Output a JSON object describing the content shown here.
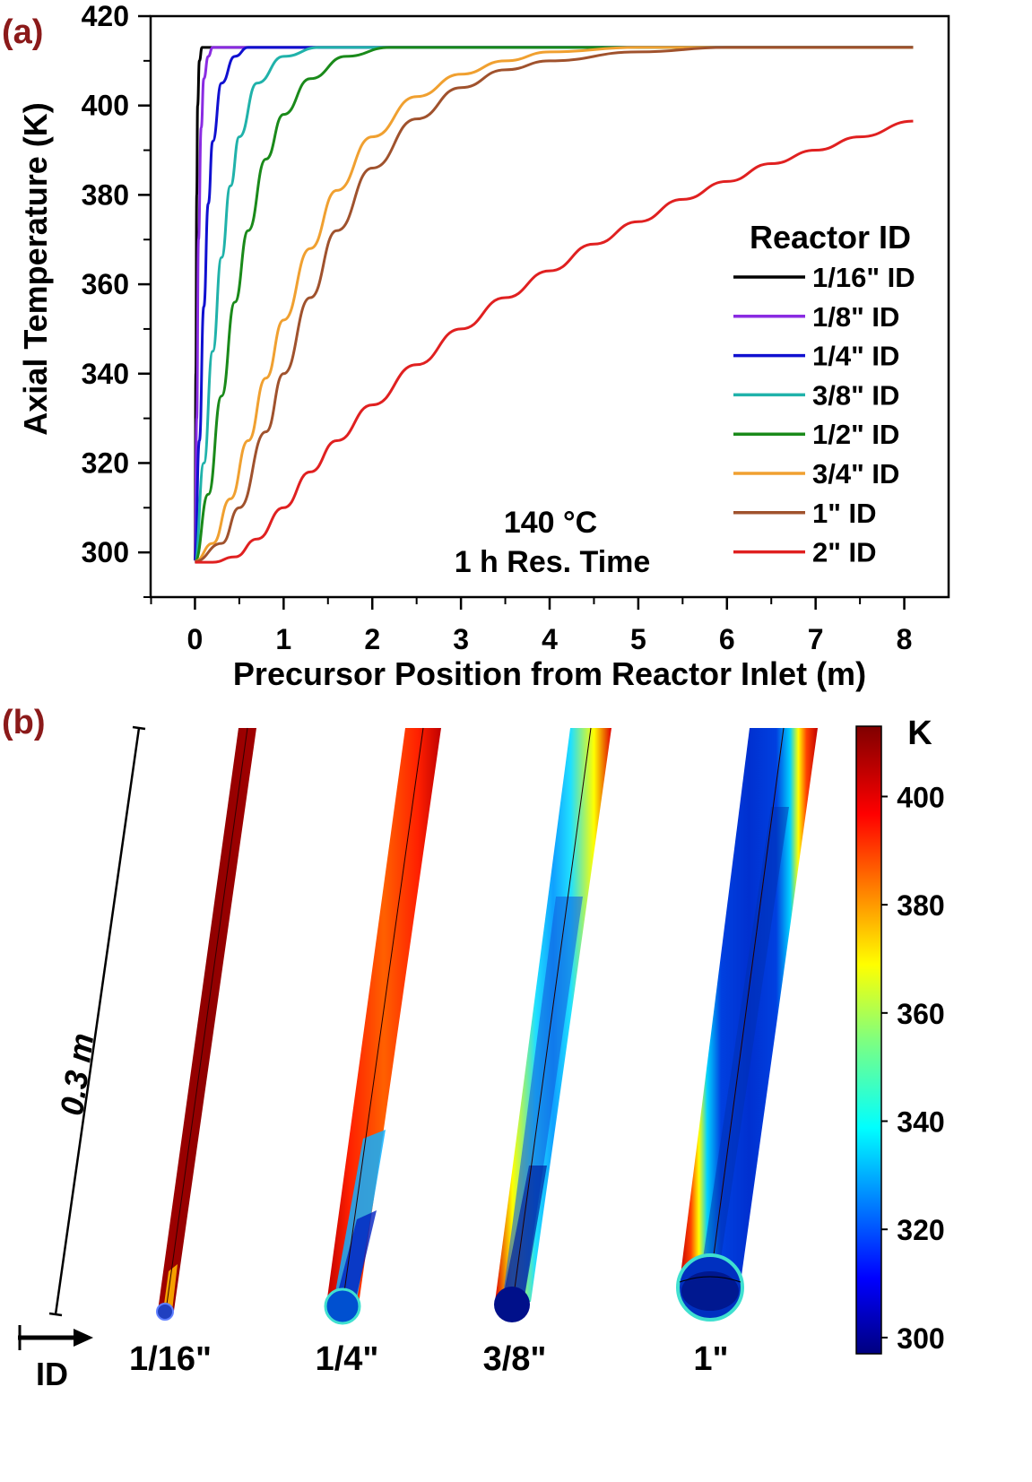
{
  "chart_data": [
    {
      "type": "line",
      "panel_label": "(a)",
      "xlabel": "Precursor Position from Reactor Inlet (m)",
      "ylabel": "Axial Temperature (K)",
      "xlim": [
        -0.5,
        8.5
      ],
      "ylim": [
        290,
        420
      ],
      "x_ticks": [
        0,
        1,
        2,
        3,
        4,
        5,
        6,
        7,
        8
      ],
      "y_ticks": [
        300,
        320,
        340,
        360,
        380,
        400,
        420
      ],
      "legend_title": "Reactor ID",
      "legend_position": "right",
      "annotation_line1": "140 °C",
      "annotation_line2": "1 h Res. Time",
      "colors": {
        "1/16\" ID": "#000000",
        "1/8\" ID": "#8a2be2",
        "1/4\" ID": "#1010d0",
        "3/8\" ID": "#20b2aa",
        "1/2\" ID": "#1a8a1a",
        "3/4\" ID": "#f0a030",
        "1\" ID": "#a0522d",
        "2\" ID": "#e02020"
      },
      "series": [
        {
          "name": "1/16\" ID",
          "x": [
            0,
            0.01,
            0.02,
            0.03,
            0.05,
            0.08,
            8.1
          ],
          "y": [
            298,
            340,
            380,
            400,
            410,
            413,
            413
          ]
        },
        {
          "name": "1/8\" ID",
          "x": [
            0,
            0.02,
            0.04,
            0.07,
            0.1,
            0.15,
            0.2,
            8.1
          ],
          "y": [
            298,
            330,
            370,
            395,
            406,
            411,
            413,
            413
          ]
        },
        {
          "name": "1/4\" ID",
          "x": [
            0,
            0.05,
            0.1,
            0.15,
            0.2,
            0.3,
            0.45,
            0.6,
            8.1
          ],
          "y": [
            298,
            325,
            355,
            378,
            392,
            405,
            411,
            413,
            413
          ]
        },
        {
          "name": "3/8\" ID",
          "x": [
            0,
            0.1,
            0.2,
            0.3,
            0.4,
            0.5,
            0.7,
            1.0,
            1.4,
            8.1
          ],
          "y": [
            298,
            320,
            345,
            366,
            382,
            393,
            405,
            411,
            413,
            413
          ]
        },
        {
          "name": "1/2\" ID",
          "x": [
            0,
            0.15,
            0.3,
            0.45,
            0.6,
            0.8,
            1.0,
            1.3,
            1.7,
            2.2,
            8.1
          ],
          "y": [
            298,
            313,
            335,
            356,
            372,
            388,
            398,
            406,
            411,
            413,
            413
          ]
        },
        {
          "name": "3/4\" ID",
          "x": [
            0,
            0.2,
            0.4,
            0.6,
            0.8,
            1.0,
            1.3,
            1.6,
            2.0,
            2.5,
            3.0,
            3.5,
            4.0,
            5.0,
            8.1
          ],
          "y": [
            298,
            302,
            312,
            325,
            339,
            352,
            368,
            381,
            393,
            402,
            407,
            410,
            412,
            413,
            413
          ]
        },
        {
          "name": "1\" ID",
          "x": [
            0,
            0.3,
            0.5,
            0.8,
            1.0,
            1.3,
            1.6,
            2.0,
            2.5,
            3.0,
            3.5,
            4.0,
            5.0,
            6.0,
            7.0,
            8.1
          ],
          "y": [
            298,
            302,
            310,
            327,
            340,
            357,
            372,
            386,
            397,
            404,
            408,
            410,
            412,
            413,
            413,
            413
          ]
        },
        {
          "name": "2\" ID",
          "x": [
            0,
            0.2,
            0.45,
            0.7,
            1.0,
            1.3,
            1.6,
            2.0,
            2.5,
            3.0,
            3.5,
            4.0,
            4.5,
            5.0,
            5.5,
            6.0,
            6.5,
            7.0,
            7.5,
            8.1
          ],
          "y": [
            297.8,
            297.8,
            299,
            303,
            310,
            318,
            325,
            333,
            342,
            350,
            357,
            363,
            369,
            374,
            379,
            383,
            387,
            390,
            393,
            396.5
          ]
        }
      ]
    },
    {
      "type": "heatmap",
      "panel_label": "(b)",
      "colorbar_unit": "K",
      "colorbar_ticks": [
        300,
        320,
        340,
        360,
        380,
        400
      ],
      "colorbar_range": [
        297,
        413
      ],
      "scale_label": "0.3 m",
      "axis_label": "ID",
      "tubes": [
        {
          "label": "1/16\"",
          "core_temperature_K": 410,
          "wall_temperature_K": 413,
          "inlet_temperature_K": 298
        },
        {
          "label": "1/4\"",
          "core_temperature_K": 385,
          "wall_temperature_K": 413,
          "inlet_temperature_K": 298
        },
        {
          "label": "3/8\"",
          "core_temperature_K": 320,
          "wall_temperature_K": 400,
          "inlet_temperature_K": 298
        },
        {
          "label": "1\"",
          "core_temperature_K": 300,
          "wall_temperature_K": 412,
          "inlet_temperature_K": 298
        }
      ]
    }
  ]
}
